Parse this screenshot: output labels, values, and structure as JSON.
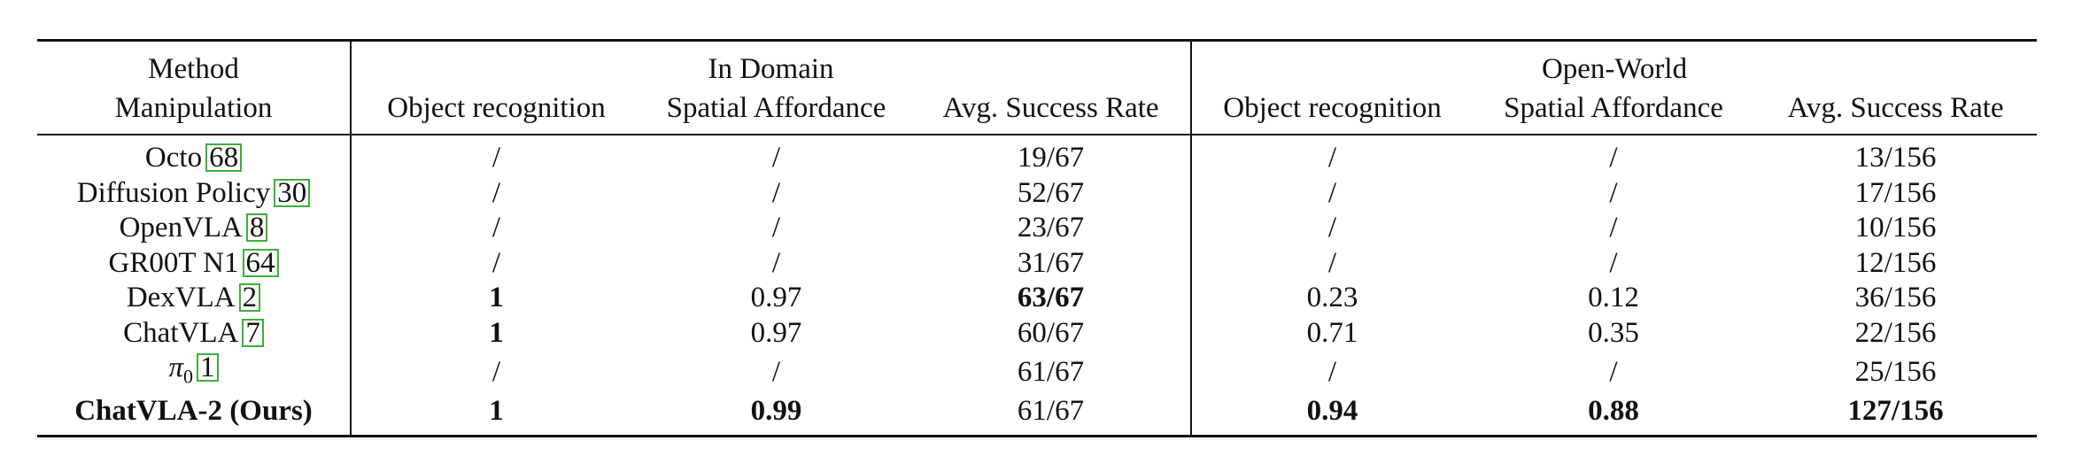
{
  "header": {
    "method_line1": "Method",
    "method_line2": "Manipulation",
    "in_domain": "In Domain",
    "open_world": "Open-World",
    "columns": [
      "Object recognition",
      "Spatial Affordance",
      "Avg. Success Rate",
      "Object recognition",
      "Spatial Affordance",
      "Avg. Success Rate"
    ]
  },
  "rows": [
    {
      "name": "Octo",
      "cite": "68",
      "cells": [
        "/",
        "/",
        "19/67",
        "/",
        "/",
        "13/156"
      ]
    },
    {
      "name": "Diffusion Policy",
      "cite": "30",
      "cells": [
        "/",
        "/",
        "52/67",
        "/",
        "/",
        "17/156"
      ]
    },
    {
      "name": "OpenVLA",
      "cite": "8",
      "cells": [
        "/",
        "/",
        "23/67",
        "/",
        "/",
        "10/156"
      ]
    },
    {
      "name": "GR00T N1",
      "cite": "64",
      "cells": [
        "/",
        "/",
        "31/67",
        "/",
        "/",
        "12/156"
      ]
    },
    {
      "name": "DexVLA",
      "cite": "2",
      "cells": [
        "1",
        "0.97",
        "63/67",
        "0.23",
        "0.12",
        "36/156"
      ]
    },
    {
      "name": "ChatVLA",
      "cite": "7",
      "cells": [
        "1",
        "0.97",
        "60/67",
        "0.71",
        "0.35",
        "22/156"
      ]
    },
    {
      "name": "π",
      "sub": "0",
      "cite": "1",
      "cells": [
        "/",
        "/",
        "61/67",
        "/",
        "/",
        "25/156"
      ]
    },
    {
      "name": "ChatVLA-2 (Ours)",
      "cells": [
        "1",
        "0.99",
        "61/67",
        "0.94",
        "0.88",
        "127/156"
      ]
    }
  ]
}
